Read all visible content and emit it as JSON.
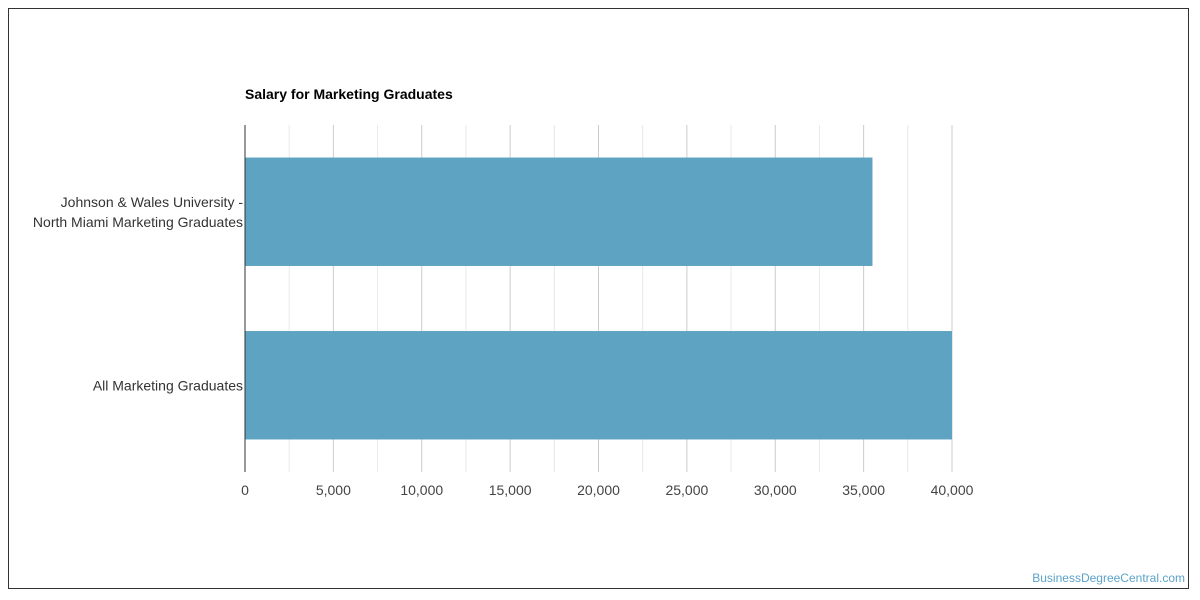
{
  "chart_data": {
    "type": "bar",
    "orientation": "horizontal",
    "title": "Salary for Marketing Graduates",
    "categories": [
      [
        "Johnson & Wales University -",
        "North Miami Marketing Graduates"
      ],
      [
        "All Marketing Graduates"
      ]
    ],
    "values": [
      35500,
      40000
    ],
    "xlim": [
      0,
      40000
    ],
    "xticks": [
      0,
      5000,
      10000,
      15000,
      20000,
      25000,
      30000,
      35000,
      40000
    ],
    "xtick_labels": [
      "0",
      "5,000",
      "10,000",
      "15,000",
      "20,000",
      "25,000",
      "30,000",
      "35,000",
      "40,000"
    ],
    "grid": true,
    "bar_color": "#5ea3c1",
    "legend": "none"
  },
  "credit": "BusinessDegreeCentral.com"
}
